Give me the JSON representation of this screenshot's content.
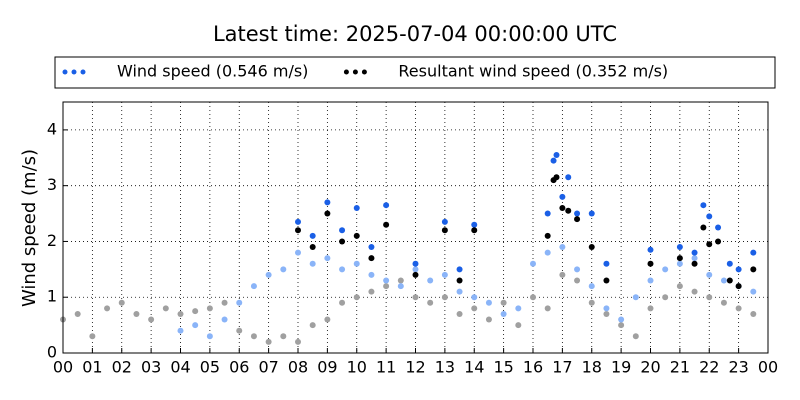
{
  "chart_data": {
    "type": "scatter",
    "title": "Latest time: 2025-07-04 00:00:00 UTC",
    "y_label": "Wind speed (m/s)",
    "xlim": [
      0,
      24
    ],
    "ylim": [
      0,
      4.5
    ],
    "xticks": [
      {
        "value": 0,
        "label": "00"
      },
      {
        "value": 1,
        "label": "01"
      },
      {
        "value": 2,
        "label": "02"
      },
      {
        "value": 3,
        "label": "03"
      },
      {
        "value": 4,
        "label": "04"
      },
      {
        "value": 5,
        "label": "05"
      },
      {
        "value": 6,
        "label": "06"
      },
      {
        "value": 7,
        "label": "07"
      },
      {
        "value": 8,
        "label": "08"
      },
      {
        "value": 9,
        "label": "09"
      },
      {
        "value": 10,
        "label": "10"
      },
      {
        "value": 11,
        "label": "11"
      },
      {
        "value": 12,
        "label": "12"
      },
      {
        "value": 13,
        "label": "13"
      },
      {
        "value": 14,
        "label": "14"
      },
      {
        "value": 15,
        "label": "15"
      },
      {
        "value": 16,
        "label": "16"
      },
      {
        "value": 17,
        "label": "17"
      },
      {
        "value": 18,
        "label": "18"
      },
      {
        "value": 19,
        "label": "19"
      },
      {
        "value": 20,
        "label": "20"
      },
      {
        "value": 21,
        "label": "21"
      },
      {
        "value": 22,
        "label": "22"
      },
      {
        "value": 23,
        "label": "23"
      },
      {
        "value": 24,
        "label": "00"
      }
    ],
    "yticks": [
      0,
      1,
      2,
      3,
      4
    ],
    "grid": true,
    "series": [
      {
        "color": "#a0a0a0",
        "x": [
          0,
          0.5,
          1,
          1.5,
          2,
          2.5,
          3,
          3.5,
          4,
          4.5,
          5,
          5.5,
          6,
          6.5,
          7,
          7.5,
          8,
          8.5,
          9,
          9.5,
          10,
          10.5,
          11,
          11.5,
          12,
          12.5,
          13,
          13.5,
          14,
          14.5,
          15,
          15.5,
          16,
          16.5,
          17,
          17.5,
          18,
          18.5,
          19,
          19.5,
          20,
          20.5,
          21,
          21.5,
          22,
          22.5,
          23,
          23.5
        ],
        "values": [
          0.6,
          0.7,
          0.3,
          0.8,
          0.9,
          0.7,
          0.6,
          0.8,
          0.7,
          0.75,
          0.8,
          0.9,
          0.4,
          0.3,
          0.2,
          0.3,
          0.2,
          0.5,
          0.6,
          0.9,
          1.0,
          1.1,
          1.2,
          1.3,
          1.0,
          0.9,
          1.0,
          0.7,
          0.8,
          0.6,
          0.9,
          0.5,
          1.0,
          0.8,
          1.4,
          1.3,
          0.9,
          0.7,
          0.5,
          0.3,
          0.8,
          1.0,
          1.2,
          1.1,
          1.0,
          0.9,
          0.8,
          0.7
        ]
      },
      {
        "color": "#8ab4f8",
        "x": [
          4,
          4.5,
          5,
          5.5,
          6,
          6.5,
          7,
          7.5,
          8,
          8.5,
          9,
          9.5,
          10,
          10.5,
          11,
          11.5,
          12,
          12.5,
          13,
          13.5,
          14,
          14.5,
          15,
          15.5,
          16,
          16.5,
          17,
          17.5,
          18,
          18.5,
          19,
          19.5,
          20,
          20.5,
          21,
          21.5,
          22,
          22.5,
          23,
          23.5
        ],
        "values": [
          0.4,
          0.5,
          0.3,
          0.6,
          0.9,
          1.2,
          1.4,
          1.5,
          1.8,
          1.6,
          1.7,
          1.5,
          1.6,
          1.4,
          1.3,
          1.2,
          1.5,
          1.3,
          1.4,
          1.1,
          1.0,
          0.9,
          0.7,
          0.8,
          1.6,
          1.8,
          1.9,
          1.5,
          1.2,
          0.8,
          0.6,
          1.0,
          1.3,
          1.5,
          1.6,
          1.7,
          1.4,
          1.3,
          1.2,
          1.1
        ]
      },
      {
        "name": "Wind speed (0.546 m/s)",
        "color": "#1a5fe6",
        "x": [
          8,
          8.5,
          9,
          9.5,
          10,
          10.5,
          11,
          12,
          13,
          13.5,
          14,
          16.5,
          16.7,
          16.8,
          17,
          17.2,
          17.5,
          18,
          18.5,
          20,
          21,
          21.5,
          21.8,
          22,
          22.3,
          22.7,
          23,
          23.5
        ],
        "values": [
          2.35,
          2.1,
          2.7,
          2.2,
          2.6,
          1.9,
          2.65,
          1.6,
          2.35,
          1.5,
          2.3,
          2.5,
          3.45,
          3.55,
          2.8,
          3.15,
          2.5,
          2.5,
          1.6,
          1.85,
          1.9,
          1.8,
          2.65,
          2.45,
          2.25,
          1.6,
          1.5,
          1.8
        ]
      },
      {
        "name": "Resultant wind speed (0.352 m/s)",
        "color": "#000000",
        "x": [
          8,
          8.5,
          9,
          9.5,
          10,
          10.5,
          11,
          12,
          13,
          13.5,
          14,
          16.5,
          16.7,
          16.8,
          17,
          17.2,
          17.5,
          18,
          18.5,
          20,
          21,
          21.5,
          21.8,
          22,
          22.3,
          22.7,
          23,
          23.5
        ],
        "values": [
          2.2,
          1.9,
          2.5,
          2.0,
          2.1,
          1.7,
          2.3,
          1.4,
          2.2,
          1.3,
          2.2,
          2.1,
          3.1,
          3.15,
          2.6,
          2.55,
          2.4,
          1.9,
          1.3,
          1.6,
          1.7,
          1.6,
          2.25,
          1.95,
          2.0,
          1.3,
          1.2,
          1.5
        ]
      }
    ]
  }
}
